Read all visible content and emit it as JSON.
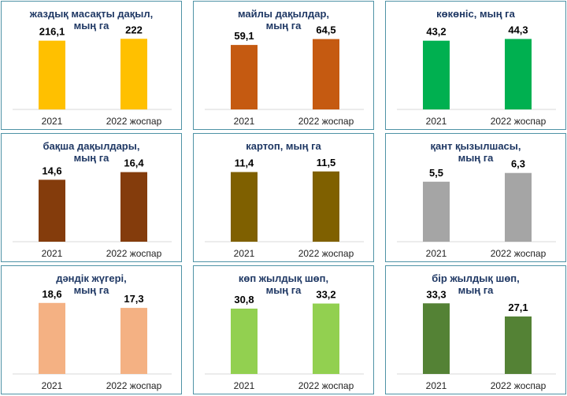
{
  "chart_data": [
    {
      "type": "bar",
      "title": [
        "жаздық масақты дақыл,",
        "мың га"
      ],
      "categories": [
        "2021",
        "2022 жоспар"
      ],
      "values": [
        216.1,
        222
      ],
      "value_labels": [
        "216,1",
        "222"
      ],
      "ylim": [
        0,
        240
      ],
      "color": "#ffc000"
    },
    {
      "type": "bar",
      "title": [
        "майлы дақылдар,",
        "мың га"
      ],
      "categories": [
        "2021",
        "2022 жоспар"
      ],
      "values": [
        59.1,
        64.5
      ],
      "value_labels": [
        "59,1",
        "64,5"
      ],
      "ylim": [
        0,
        70
      ],
      "color": "#c55a11"
    },
    {
      "type": "bar",
      "title": [
        "көкөніс, мың га"
      ],
      "categories": [
        "2021",
        "2022 жоспар"
      ],
      "values": [
        43.2,
        44.3
      ],
      "value_labels": [
        "43,2",
        "44,3"
      ],
      "ylim": [
        0,
        48
      ],
      "color": "#00b050"
    },
    {
      "type": "bar",
      "title": [
        "бақша дақылдары,",
        "мың га"
      ],
      "categories": [
        "2021",
        "2022 жоспар"
      ],
      "values": [
        14.6,
        16.4
      ],
      "value_labels": [
        "14,6",
        "16,4"
      ],
      "ylim": [
        0,
        18
      ],
      "color": "#843c0c"
    },
    {
      "type": "bar",
      "title": [
        "картоп, мың га"
      ],
      "categories": [
        "2021",
        "2022 жоспар"
      ],
      "values": [
        11.4,
        11.5
      ],
      "value_labels": [
        "11,4",
        "11,5"
      ],
      "ylim": [
        0,
        12.5
      ],
      "color": "#7f6000"
    },
    {
      "type": "bar",
      "title": [
        "қант қызылшасы,",
        "мың га"
      ],
      "categories": [
        "2021",
        "2022 жоспар"
      ],
      "values": [
        5.5,
        6.3
      ],
      "value_labels": [
        "5,5",
        "6,3"
      ],
      "ylim": [
        0,
        7
      ],
      "color": "#a5a5a5"
    },
    {
      "type": "bar",
      "title": [
        "дәндік жүгері,",
        "мың га"
      ],
      "categories": [
        "2021",
        "2022 жоспар"
      ],
      "values": [
        18.6,
        17.3
      ],
      "value_labels": [
        "18,6",
        "17,3"
      ],
      "ylim": [
        0,
        20
      ],
      "color": "#f4b183"
    },
    {
      "type": "bar",
      "title": [
        "көп жылдық шөп,",
        "мың га"
      ],
      "categories": [
        "2021",
        "2022 жоспар"
      ],
      "values": [
        30.8,
        33.2
      ],
      "value_labels": [
        "30,8",
        "33,2"
      ],
      "ylim": [
        0,
        36
      ],
      "color": "#92d050"
    },
    {
      "type": "bar",
      "title": [
        "бір жылдық шөп,",
        "мың га"
      ],
      "categories": [
        "2021",
        "2022 жоспар"
      ],
      "values": [
        33.3,
        27.1
      ],
      "value_labels": [
        "33,3",
        "27,1"
      ],
      "ylim": [
        0,
        36
      ],
      "color": "#548235"
    }
  ]
}
